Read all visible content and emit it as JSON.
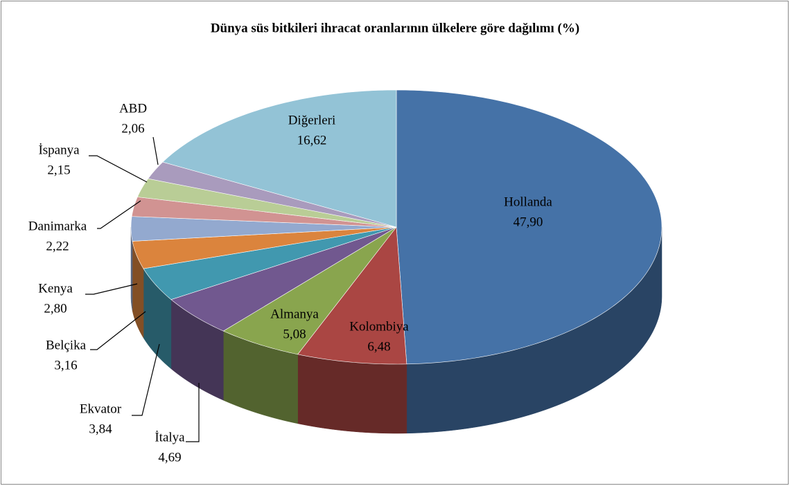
{
  "chart_data": {
    "type": "pie",
    "title": "Dünya süs bitkileri ihracat oranlarının ülkelere göre dağılımı (%)",
    "categories": [
      "Hollanda",
      "Kolombiya",
      "Almanya",
      "İtalya",
      "Ekvator",
      "Belçika",
      "Kenya",
      "Danimarka",
      "İspanya",
      "ABD",
      "Diğerleri"
    ],
    "values": [
      47.9,
      6.48,
      5.08,
      4.69,
      3.84,
      3.16,
      2.8,
      2.22,
      2.15,
      2.06,
      16.62
    ],
    "value_labels": [
      "47,90",
      "6,48",
      "5,08",
      "4,69",
      "3,84",
      "3,16",
      "2,80",
      "2,22",
      "2,15",
      "2,06",
      "16,62"
    ],
    "colors": [
      "#4572a7",
      "#aa4643",
      "#89a54e",
      "#71588f",
      "#4198af",
      "#db843d",
      "#93a9cf",
      "#d19392",
      "#b9cd96",
      "#a99bbd",
      "#93c3d6"
    ]
  }
}
